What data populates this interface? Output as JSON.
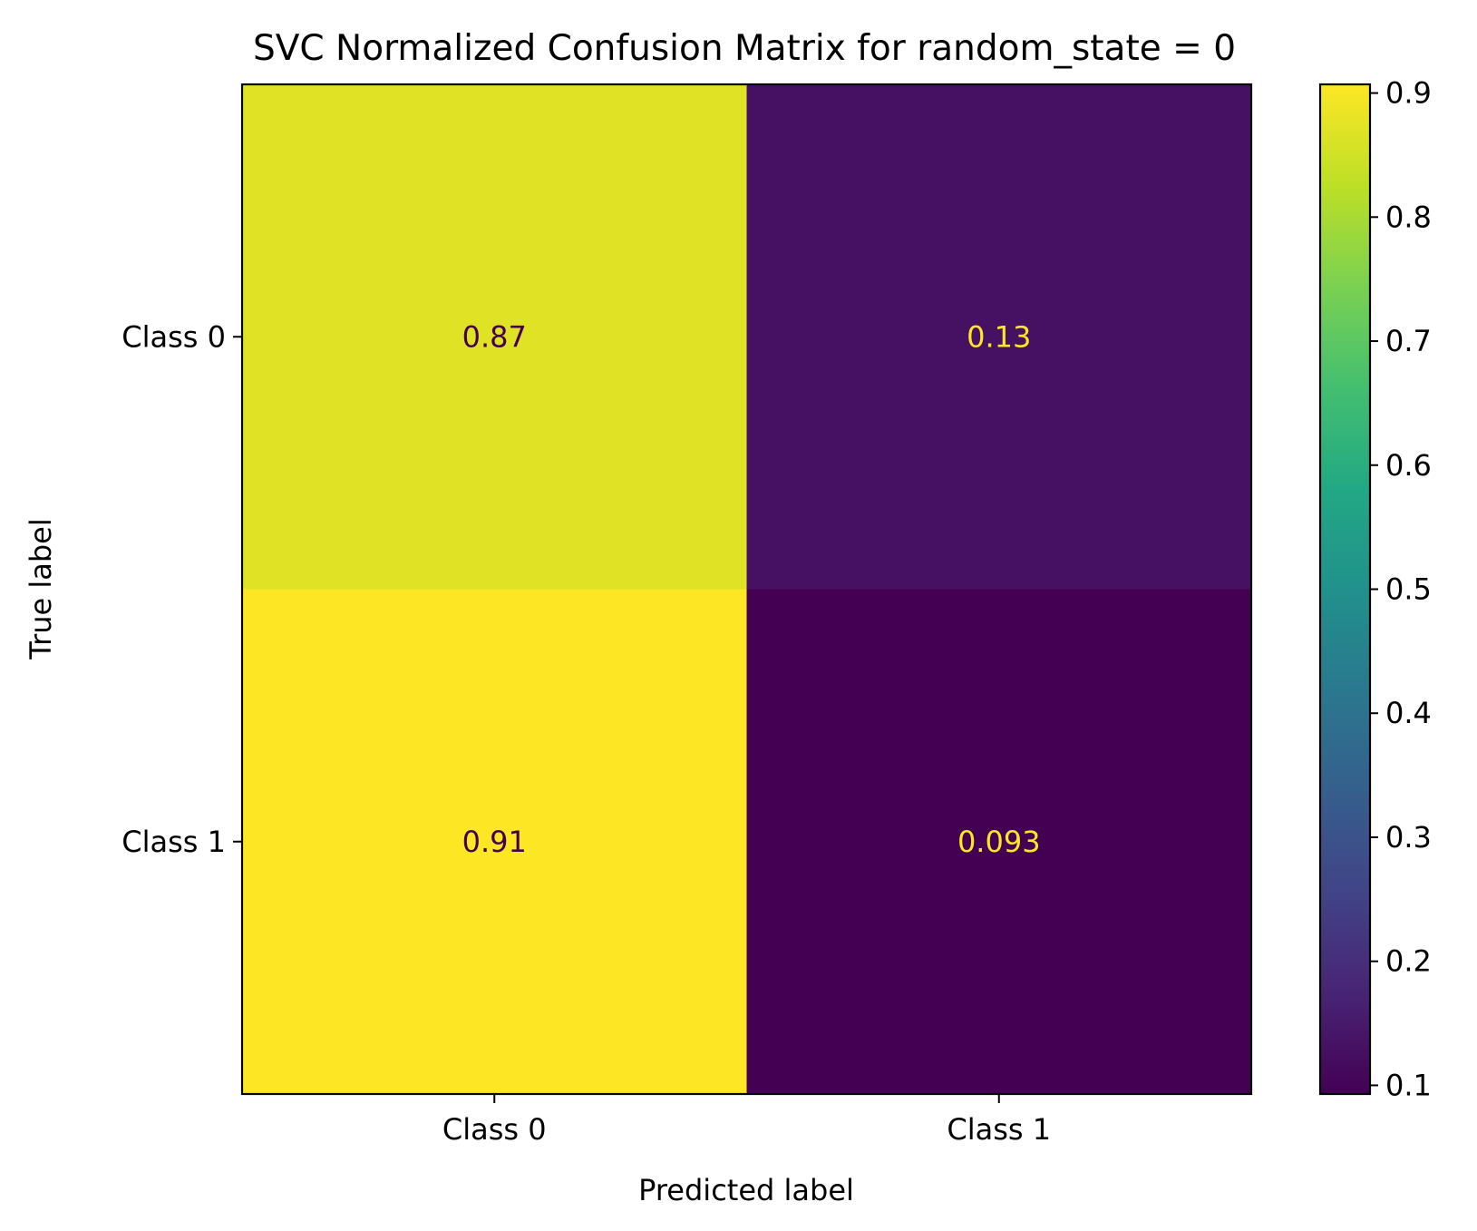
{
  "chart_data": {
    "type": "heatmap",
    "title": "SVC Normalized Confusion Matrix for random_state = 0",
    "xlabel": "Predicted label",
    "ylabel": "True label",
    "x_categories": [
      "Class 0",
      "Class 1"
    ],
    "y_categories": [
      "Class 0",
      "Class 1"
    ],
    "values": [
      [
        0.87,
        0.13
      ],
      [
        0.91,
        0.093
      ]
    ],
    "cell_labels": [
      [
        "0.87",
        "0.13"
      ],
      [
        "0.91",
        "0.093"
      ]
    ],
    "colormap": "viridis",
    "colorbar": {
      "range": [
        0.093,
        0.907
      ],
      "ticks": [
        0.1,
        0.2,
        0.3,
        0.4,
        0.5,
        0.6,
        0.7,
        0.8,
        0.9
      ],
      "tick_labels": [
        "0.1",
        "0.2",
        "0.3",
        "0.4",
        "0.5",
        "0.6",
        "0.7",
        "0.8",
        "0.9"
      ]
    },
    "grid": false,
    "colors": {
      "dark_text": "#440154",
      "light_text": "#fde725"
    }
  }
}
